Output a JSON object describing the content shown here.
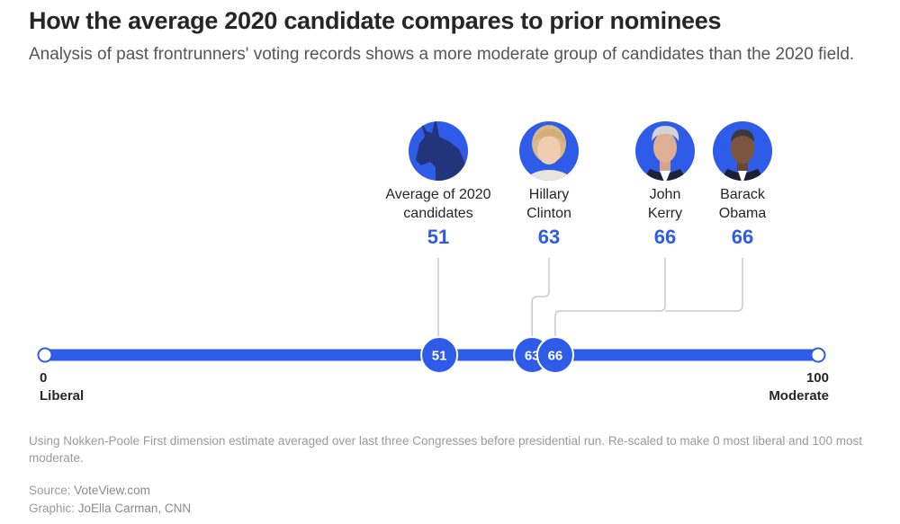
{
  "title": "How the average 2020 candidate compares to prior nominees",
  "subtitle": "Analysis of past frontrunners' voting records shows a more moderate group of candidates than the 2020 field.",
  "footnote": "Using Nokken-Poole First dimension estimate averaged over last three Congresses before presidential run. Re-scaled to make 0 most liberal and 100 most moderate.",
  "source_label": "Source:",
  "source_value": "VoteView.com",
  "graphic_label": "Graphic:",
  "graphic_value": "JoElla Carman, CNN",
  "colors": {
    "accent": "#2e5ce8",
    "accent_dark": "#24408f",
    "connector": "#c8c8c8",
    "text": "#262626"
  },
  "chart_data": {
    "type": "scatter",
    "xlim": [
      0,
      100
    ],
    "axis_min_value": "0",
    "axis_min_label": "Liberal",
    "axis_max_value": "100",
    "axis_max_label": "Moderate",
    "points": [
      {
        "name_lines": [
          "Average of 2020",
          "candidates"
        ],
        "value": 51,
        "value_label": "51",
        "icon": "donkey-icon"
      },
      {
        "name_lines": [
          "Hillary",
          "Clinton"
        ],
        "value": 63,
        "value_label": "63",
        "icon": "clinton-portrait"
      },
      {
        "name_lines": [
          "John",
          "Kerry"
        ],
        "value": 66,
        "value_label": "66",
        "icon": "kerry-portrait"
      },
      {
        "name_lines": [
          "Barack",
          "Obama"
        ],
        "value": 66,
        "value_label": "66",
        "icon": "obama-portrait"
      }
    ]
  }
}
